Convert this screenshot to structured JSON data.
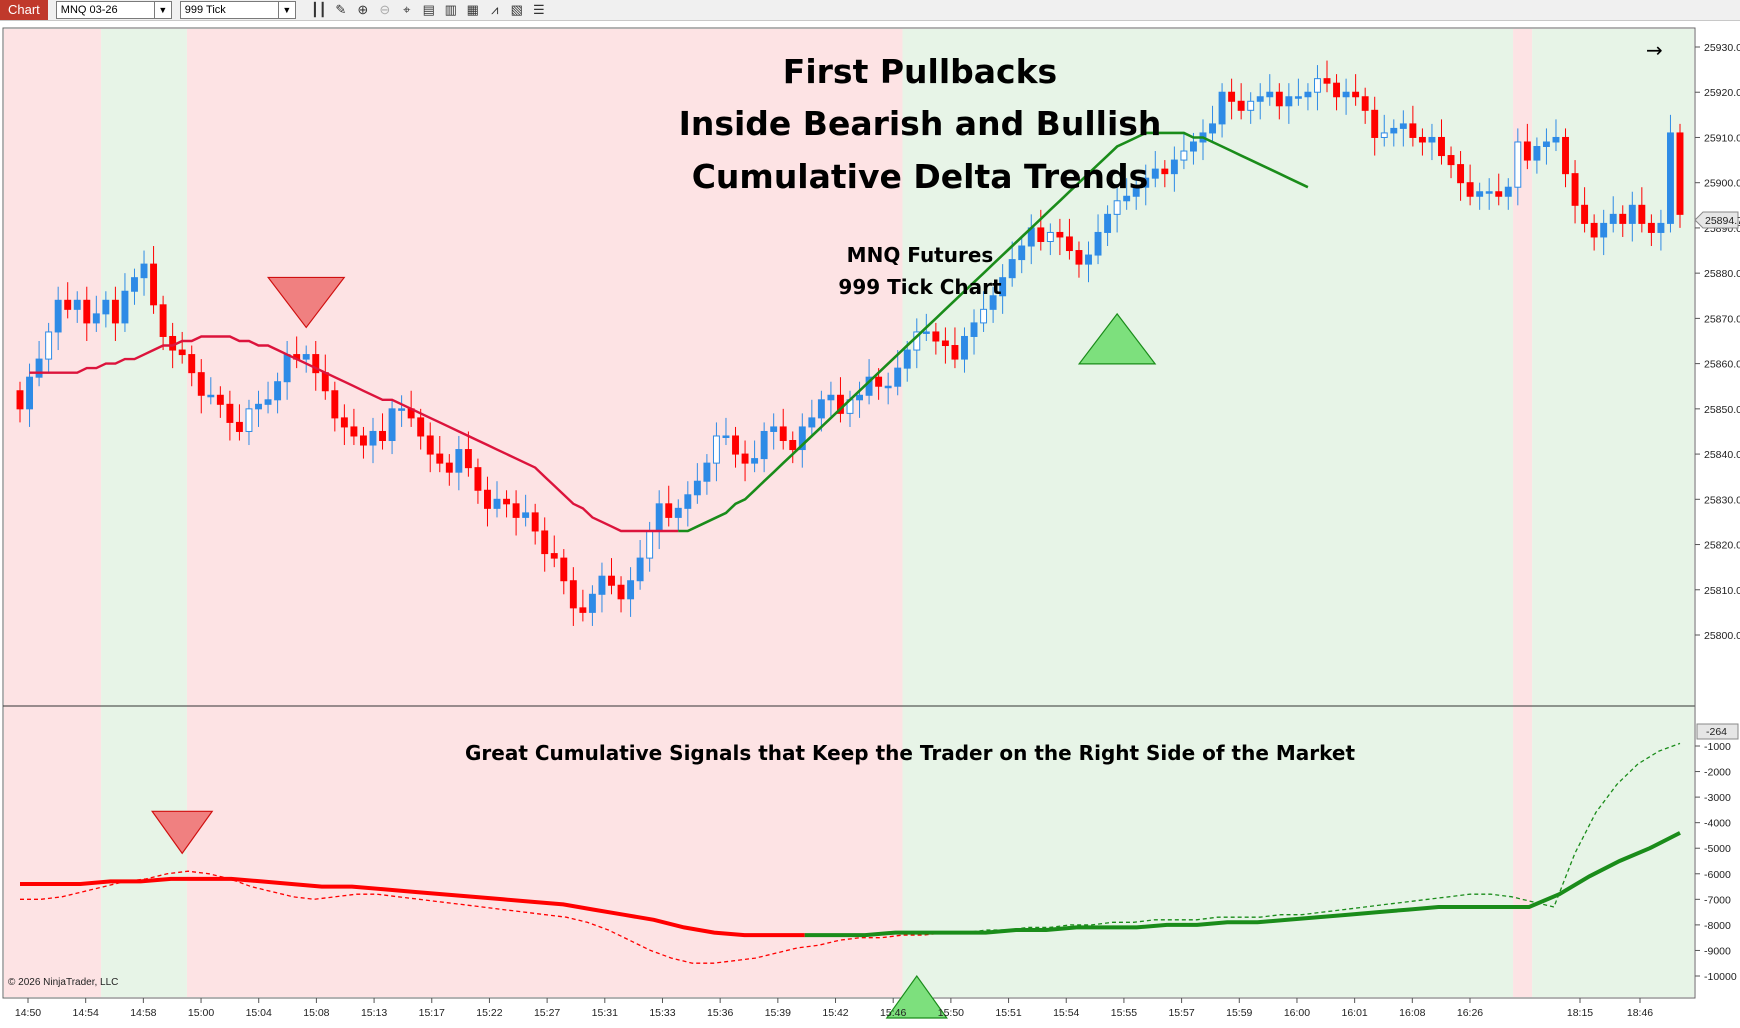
{
  "toolbar": {
    "tab_label": "Chart",
    "instrument": "MNQ 03-26",
    "interval": "999 Tick",
    "icons": [
      "bar-style-icon",
      "draw-tool-icon",
      "zoom-in-icon",
      "zoom-out-icon",
      "crosshair-icon",
      "data-box-icon",
      "properties-icon",
      "strategy-icon",
      "indicator-icon",
      "templates-icon",
      "more-icon"
    ]
  },
  "colors": {
    "bull_candle": "#2e8be6",
    "bear_candle": "#ff0000",
    "bear_zone": "#fde3e4",
    "bull_zone": "#e7f4e7",
    "ma_bear": "#dc143c",
    "ma_bull": "#1a8c1a",
    "signal_down": "#f08080",
    "signal_up": "#7de07d"
  },
  "chart_data": {
    "type": "candlestick",
    "title_lines": [
      "First Pullbacks",
      "Inside Bearish and Bullish",
      "Cumulative Delta Trends"
    ],
    "subtitle_lines": [
      "MNQ Futures",
      "999 Tick Chart"
    ],
    "panel2_caption": "Great Cumulative Signals that Keep the Trader on the Right Side of the Market",
    "copyright": "© 2026 NinjaTrader, LLC",
    "price_axis": {
      "ticks": [
        "25930.00",
        "25920.00",
        "25910.00",
        "25900.00",
        "25890.00",
        "25880.00",
        "25870.00",
        "25860.00",
        "25850.00",
        "25840.00",
        "25830.00",
        "25820.00",
        "25810.00",
        "25800.00"
      ],
      "last_price": "25894.75"
    },
    "delta_axis": {
      "ticks": [
        "-1000",
        "-2000",
        "-3000",
        "-4000",
        "-5000",
        "-6000",
        "-7000",
        "-8000",
        "-9000",
        "-10000"
      ],
      "last_value": "-264"
    },
    "x_labels": [
      "14:50",
      "14:54",
      "14:58",
      "15:00",
      "15:04",
      "15:08",
      "15:13",
      "15:17",
      "15:22",
      "15:27",
      "15:31",
      "15:33",
      "15:36",
      "15:39",
      "15:42",
      "15:46",
      "15:50",
      "15:51",
      "15:54",
      "15:55",
      "15:57",
      "15:59",
      "16:00",
      "16:01",
      "16:08",
      "16:26",
      "18:15",
      "18:46"
    ],
    "zones": [
      {
        "bar_from": 0,
        "bar_to": 9,
        "trend": "bear"
      },
      {
        "bar_from": 9,
        "bar_to": 18,
        "trend": "bull"
      },
      {
        "bar_from": 18,
        "bar_to": 93,
        "trend": "bear"
      },
      {
        "bar_from": 93,
        "bar_to": 157,
        "trend": "bull"
      },
      {
        "bar_from": 157,
        "bar_to": 159,
        "trend": "bear"
      },
      {
        "bar_from": 159,
        "bar_to": 175,
        "trend": "bull"
      }
    ],
    "close": [
      25850,
      25857,
      25861,
      25867,
      25874,
      25872,
      25874,
      25869,
      25871,
      25874,
      25869,
      25876,
      25879,
      25882,
      25873,
      25866,
      25863,
      25862,
      25858,
      25853,
      25853,
      25851,
      25847,
      25845,
      25850,
      25851,
      25852,
      25856,
      25862,
      25861,
      25862,
      25858,
      25854,
      25848,
      25846,
      25844,
      25842,
      25845,
      25843,
      25850,
      25850,
      25848,
      25844,
      25840,
      25838,
      25836,
      25841,
      25837,
      25832,
      25828,
      25830,
      25829,
      25826,
      25827,
      25823,
      25818,
      25817,
      25812,
      25806,
      25805,
      25809,
      25813,
      25811,
      25808,
      25812,
      25817,
      25823,
      25829,
      25826,
      25828,
      25831,
      25834,
      25838,
      25844,
      25844,
      25840,
      25838,
      25839,
      25845,
      25846,
      25843,
      25841,
      25846,
      25848,
      25852,
      25853,
      25849,
      25852,
      25853,
      25857,
      25855,
      25855,
      25859,
      25863,
      25867,
      25867,
      25865,
      25864,
      25861,
      25866,
      25869,
      25872,
      25875,
      25879,
      25883,
      25886,
      25890,
      25887,
      25889,
      25888,
      25885,
      25882,
      25884,
      25889,
      25893,
      25896,
      25897,
      25899,
      25901,
      25903,
      25902,
      25905,
      25907,
      25909,
      25911,
      25913,
      25920,
      25918,
      25916,
      25918,
      25919,
      25920,
      25917,
      25919,
      25919,
      25920,
      25923,
      25922,
      25919,
      25920,
      25919,
      25916,
      25910,
      25911,
      25912,
      25913,
      25910,
      25909,
      25910,
      25906,
      25904,
      25900,
      25897,
      25898,
      25898,
      25897,
      25899,
      25909,
      25905,
      25908,
      25909,
      25910,
      25902,
      25895,
      25891,
      25888,
      25891,
      25893,
      25891,
      25895,
      25891,
      25889,
      25891,
      25911,
      25893
    ],
    "ma": [
      25858,
      25858,
      25858,
      25858,
      25858,
      25858,
      25859,
      25859,
      25860,
      25860,
      25861,
      25861,
      25862,
      25863,
      25864,
      25864,
      25865,
      25865,
      25866,
      25866,
      25866,
      25866,
      25865,
      25865,
      25864,
      25864,
      25863,
      25862,
      25861,
      25860,
      25859,
      25858,
      25857,
      25856,
      25855,
      25854,
      25853,
      25852,
      25852,
      25851,
      25850,
      25849,
      25848,
      25847,
      25846,
      25845,
      25844,
      25843,
      25842,
      25841,
      25840,
      25839,
      25838,
      25837,
      25835,
      25833,
      25831,
      25829,
      25828,
      25826,
      25825,
      25824,
      25823,
      25823,
      25823,
      25823,
      25823,
      25823,
      25823,
      25823,
      25824,
      25825,
      25826,
      25827,
      25829,
      25830,
      25832,
      25834,
      25836,
      25838,
      25840,
      25842,
      25844,
      25846,
      25848,
      25850,
      25852,
      25854,
      25856,
      25858,
      25860,
      25862,
      25864,
      25866,
      25868,
      25870,
      25872,
      25874,
      25876,
      25878,
      25880,
      25882,
      25884,
      25886,
      25888,
      25890,
      25892,
      25894,
      25896,
      25898,
      25900,
      25902,
      25904,
      25906,
      25908,
      25909,
      25910,
      25911,
      25911,
      25911,
      25911,
      25911,
      25910,
      25910,
      25909,
      25908,
      25907,
      25906,
      25905,
      25904,
      25903,
      25902,
      25901,
      25900,
      25899
    ],
    "ma_start_bar": 1,
    "ma_trend_bull_from_bar": 69,
    "delta_dashed": [
      -7000,
      -7000,
      -6900,
      -6700,
      -6500,
      -6300,
      -6200,
      -6000,
      -5900,
      -6000,
      -6200,
      -6500,
      -6700,
      -6900,
      -7000,
      -6900,
      -6800,
      -6800,
      -6900,
      -7000,
      -7100,
      -7200,
      -7300,
      -7400,
      -7500,
      -7600,
      -7700,
      -7900,
      -8200,
      -8600,
      -9000,
      -9300,
      -9500,
      -9500,
      -9400,
      -9300,
      -9100,
      -8900,
      -8800,
      -8600,
      -8500,
      -8500,
      -8400,
      -8400,
      -8300,
      -8300,
      -8200,
      -8200,
      -8100,
      -8100,
      -8000,
      -8000,
      -7900,
      -7900,
      -7800,
      -7800,
      -7800,
      -7700,
      -7700,
      -7700,
      -7600,
      -7600,
      -7500,
      -7400,
      -7300,
      -7200,
      -7100,
      -7000,
      -6900,
      -6800,
      -6800,
      -6900,
      -7100,
      -7300,
      -5200,
      -3600,
      -2500,
      -1700,
      -1200,
      -900
    ],
    "delta_solid": [
      -6400,
      -6400,
      -6400,
      -6300,
      -6300,
      -6200,
      -6200,
      -6200,
      -6300,
      -6400,
      -6500,
      -6500,
      -6600,
      -6700,
      -6800,
      -6900,
      -7000,
      -7100,
      -7200,
      -7400,
      -7600,
      -7800,
      -8100,
      -8300,
      -8400,
      -8400,
      -8400,
      -8400,
      -8400,
      -8300,
      -8300,
      -8300,
      -8300,
      -8200,
      -8200,
      -8100,
      -8100,
      -8100,
      -8000,
      -8000,
      -7900,
      -7900,
      -7800,
      -7700,
      -7600,
      -7500,
      -7400,
      -7300,
      -7300,
      -7300,
      -7300,
      -6800,
      -6100,
      -5500,
      -5000,
      -4400
    ],
    "signals": [
      {
        "panel": "price",
        "direction": "down",
        "bar": 30,
        "value": 25868
      },
      {
        "panel": "price",
        "direction": "up",
        "bar": 115,
        "value": 25871
      },
      {
        "panel": "delta",
        "direction": "down",
        "bar": 17,
        "value": -5200
      },
      {
        "panel": "delta",
        "direction": "up",
        "bar": 94,
        "value": -10000
      }
    ]
  }
}
